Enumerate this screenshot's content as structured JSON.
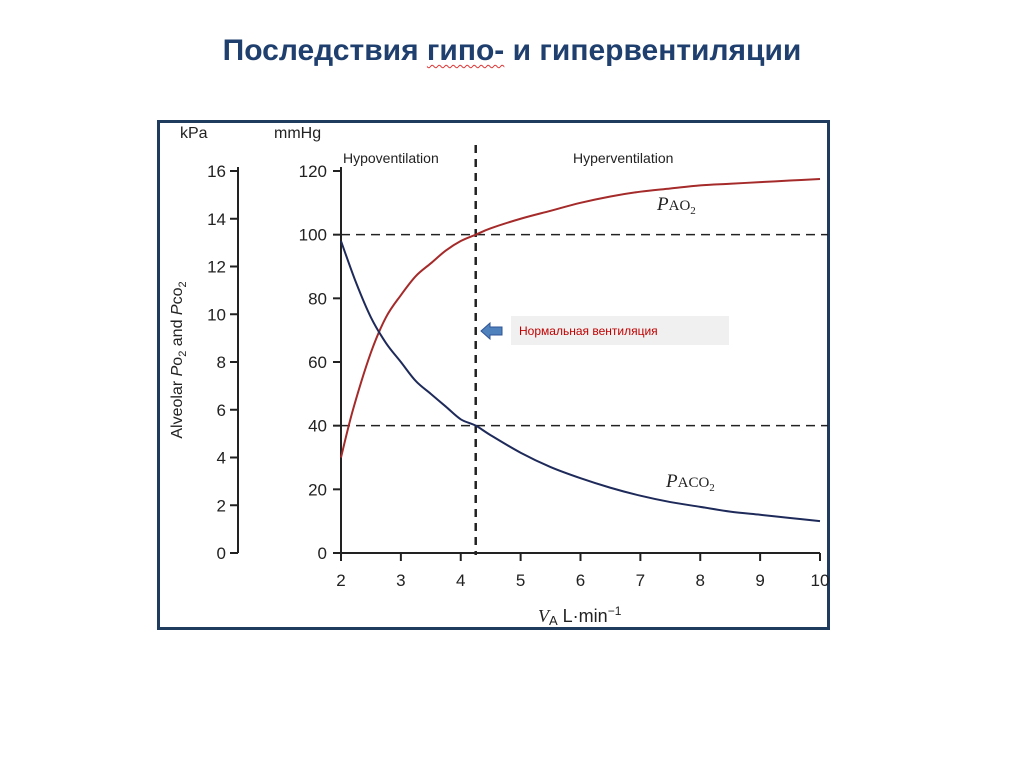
{
  "slide": {
    "title_part1": "Последствия ",
    "title_part2": "гипо-",
    "title_part3": " и гипервентиляции"
  },
  "chart_data": {
    "type": "line",
    "xlabel": "V̇A L·min⁻¹",
    "x_label_main": "V",
    "x_label_sub": "A",
    "x_label_rest": " L·min",
    "x_label_exp": "−1",
    "ylabel": "Alveolar PO2 and PCO2",
    "ylabel_parts": [
      "Alveolar ",
      "P",
      "o",
      "2",
      " and ",
      "P",
      "co",
      "2"
    ],
    "y_units": {
      "kpa": "kPa",
      "mmhg": "mmHg"
    },
    "xlim": [
      2,
      10
    ],
    "ylim": [
      0,
      120
    ],
    "x_ticks": [
      "2",
      "3",
      "4",
      "5",
      "6",
      "7",
      "8",
      "9",
      "10"
    ],
    "y_ticks_mmhg": [
      "0",
      "20",
      "40",
      "60",
      "80",
      "100",
      "120"
    ],
    "y_ticks_kpa": [
      "0",
      "2",
      "4",
      "6",
      "8",
      "10",
      "12",
      "14",
      "16"
    ],
    "region_labels": {
      "left": "Hypoventilation",
      "right": "Hyperventilation"
    },
    "normal_ventilation_x": 4.25,
    "reference_lines_mmhg": [
      100,
      40
    ],
    "series": [
      {
        "name": "PAO2",
        "label_main": "P",
        "label_sc": "AO",
        "label_sub": "2",
        "color": "#a52a2a",
        "x": [
          2.0,
          2.2,
          2.5,
          2.75,
          3.0,
          3.25,
          3.5,
          3.75,
          4.0,
          4.25,
          4.5,
          5.0,
          5.5,
          6.0,
          6.5,
          7.0,
          7.5,
          8.0,
          8.5,
          9.0,
          9.5,
          10.0
        ],
        "y": [
          30,
          45,
          63,
          74,
          81,
          87,
          91,
          95,
          98,
          100,
          102,
          105,
          107.5,
          110,
          112,
          113.5,
          114.5,
          115.5,
          116,
          116.5,
          117,
          117.5
        ]
      },
      {
        "name": "PACO2",
        "label_main": "P",
        "label_sc": "ACO",
        "label_sub": "2",
        "color": "#1e2a5a",
        "x": [
          2.0,
          2.25,
          2.5,
          2.75,
          3.0,
          3.25,
          3.5,
          3.75,
          4.0,
          4.25,
          4.5,
          5.0,
          5.5,
          6.0,
          6.5,
          7.0,
          7.5,
          8.0,
          8.5,
          9.0,
          9.5,
          10.0
        ],
        "y": [
          98,
          85,
          74,
          66,
          60,
          54,
          50,
          46,
          42,
          40,
          37,
          31.5,
          27,
          23.5,
          20.5,
          18,
          16,
          14.5,
          13,
          12,
          11,
          10
        ]
      }
    ]
  },
  "annotation": {
    "text": "Нормальная  вентиляция",
    "arrow_color": "#4f81bd"
  }
}
